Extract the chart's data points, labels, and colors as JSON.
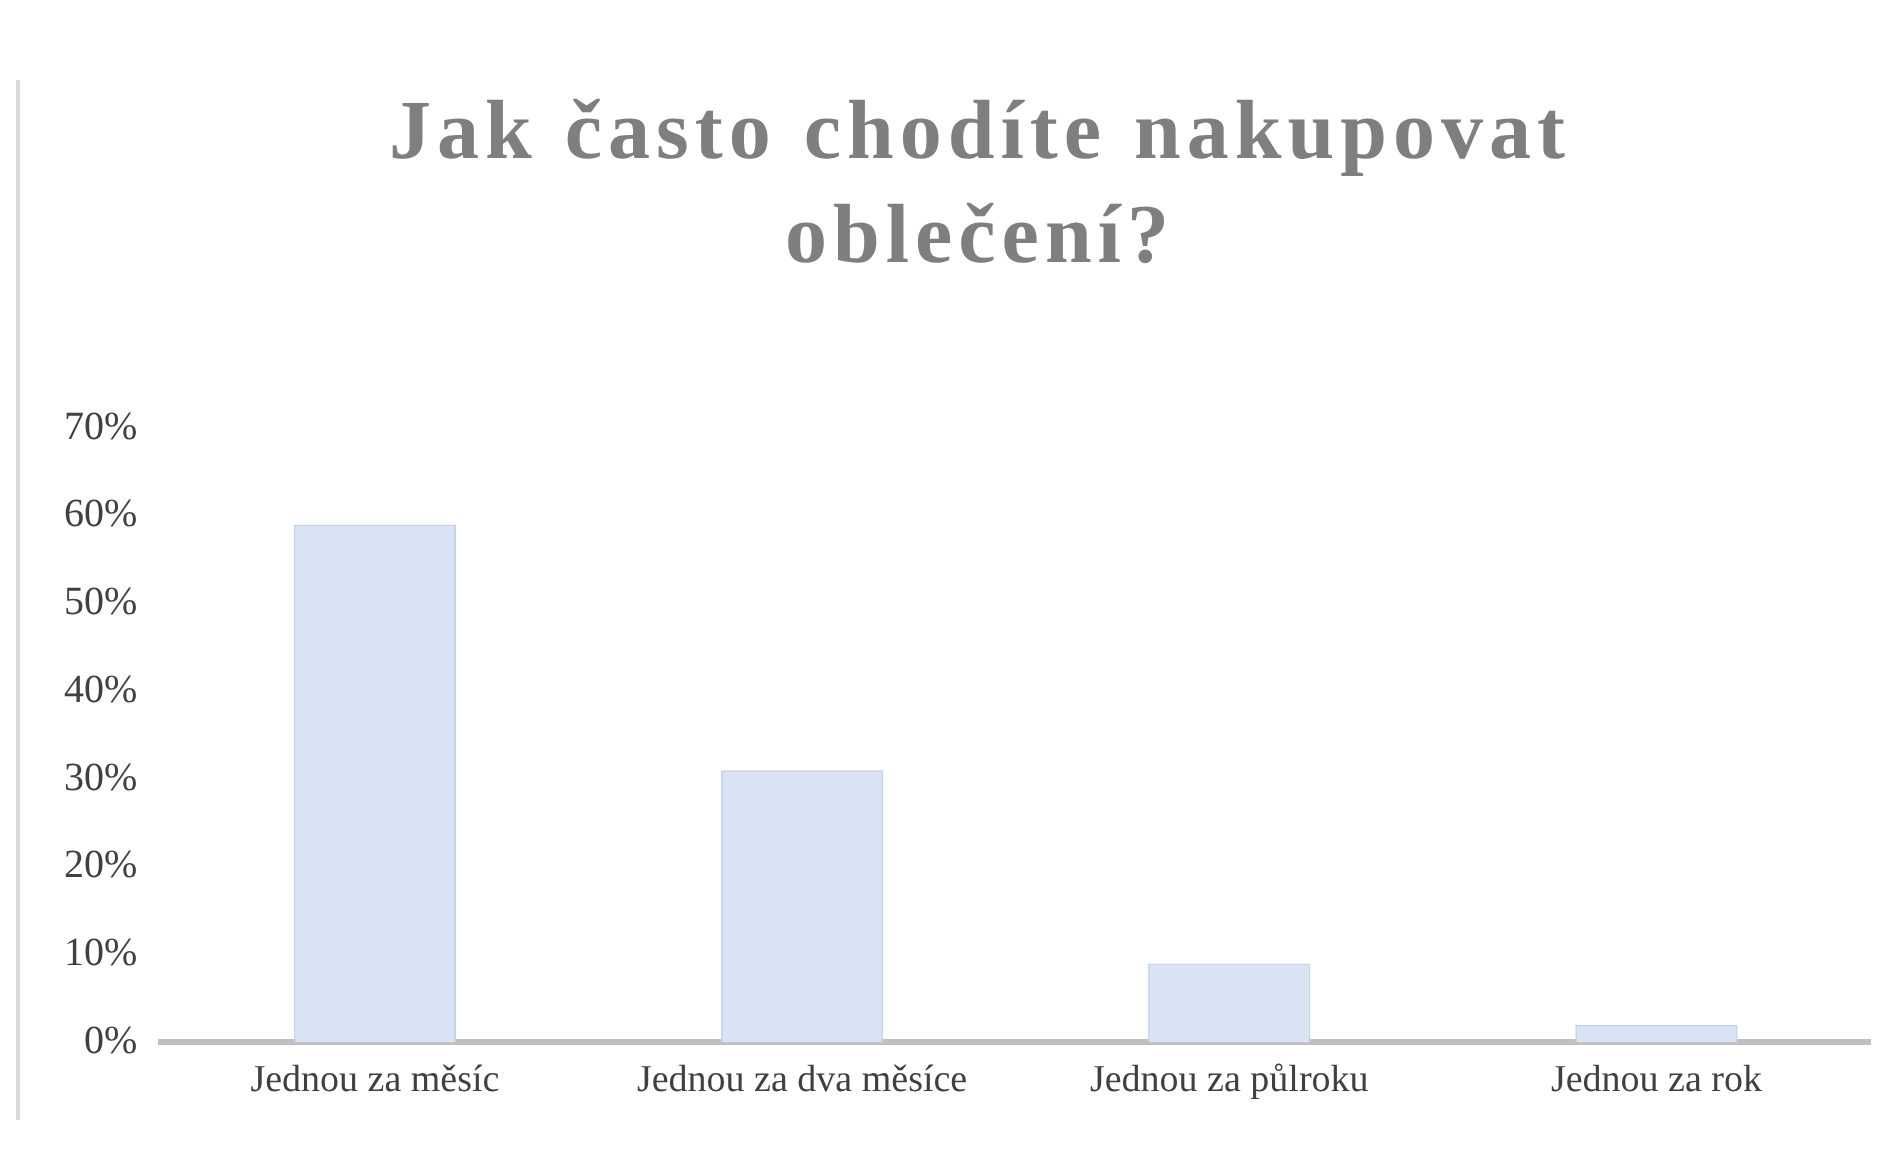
{
  "chart_data": {
    "type": "bar",
    "title": "Jak často chodíte nakupovat oblečení?",
    "categories": [
      "Jednou za měsíc",
      "Jednou za dva měsíce",
      "Jednou za půlroku",
      "Jednou za rok"
    ],
    "values": [
      59,
      31,
      9,
      2
    ],
    "color": "#dae3f3",
    "ylim": [
      0,
      70
    ],
    "yticks": [
      {
        "value": 0,
        "label": "0%"
      },
      {
        "value": 10,
        "label": "10%"
      },
      {
        "value": 20,
        "label": "20%"
      },
      {
        "value": 30,
        "label": "30%"
      },
      {
        "value": 40,
        "label": "40%"
      },
      {
        "value": 50,
        "label": "50%"
      },
      {
        "value": 60,
        "label": "60%"
      },
      {
        "value": 70,
        "label": "70%"
      }
    ],
    "grid": false,
    "legend": false
  }
}
